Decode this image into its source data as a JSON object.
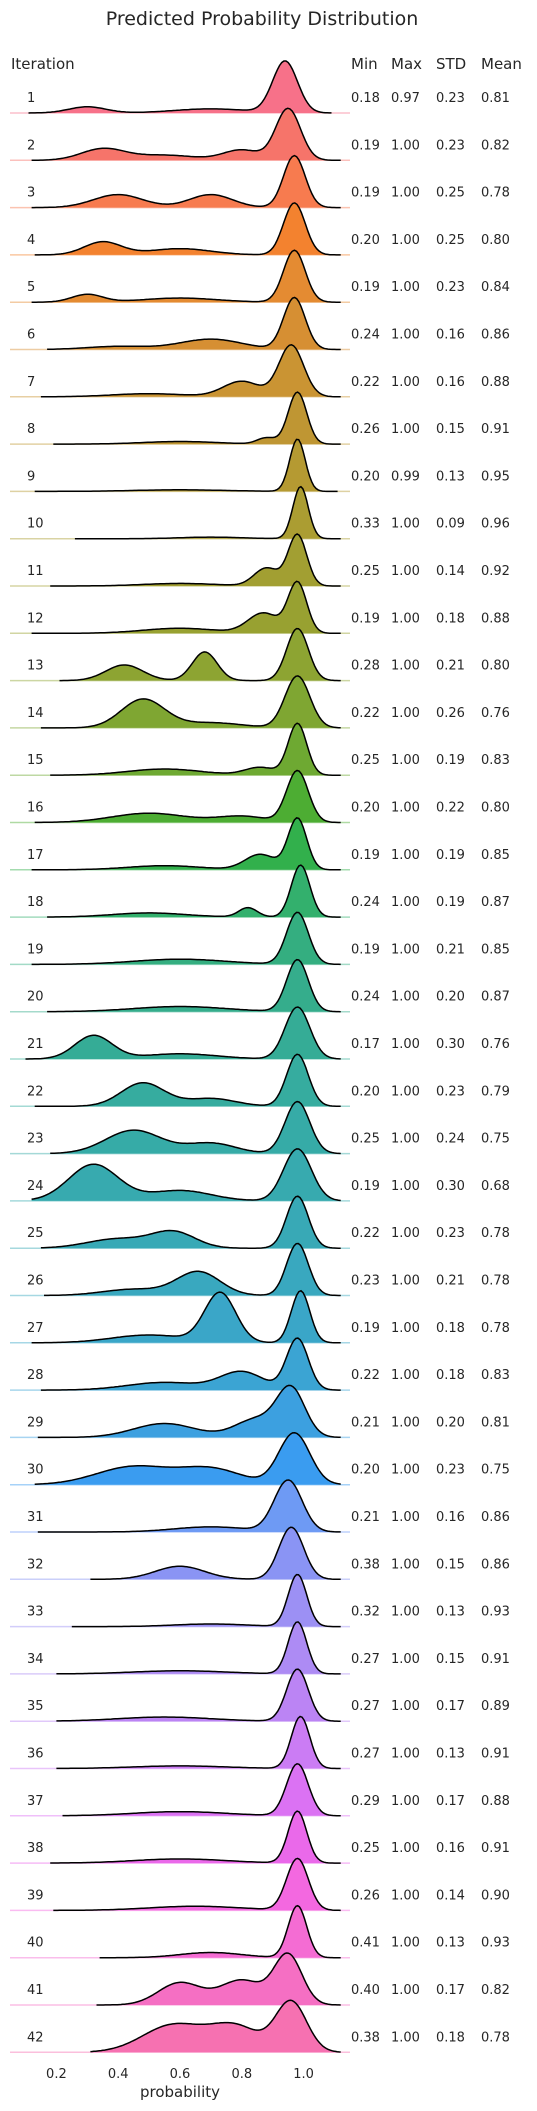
{
  "chart_data": {
    "type": "ridgeline",
    "title": "Predicted Probability Distribution",
    "xlabel": "probability",
    "xlim": [
      0.05,
      1.15
    ],
    "xticks": [
      "0.2",
      "0.4",
      "0.6",
      "0.8",
      "1.0"
    ],
    "headers": {
      "iteration": "Iteration",
      "min": "Min",
      "max": "Max",
      "std": "STD",
      "mean": "Mean"
    },
    "rows": [
      {
        "iteration": "1",
        "min": "0.18",
        "max": "0.97",
        "std": "0.23",
        "mean": "0.81",
        "color": "#f77189",
        "peaks": [
          [
            0.94,
            1.0,
            0.04
          ],
          [
            0.3,
            0.12,
            0.06
          ],
          [
            0.7,
            0.08,
            0.12
          ]
        ]
      },
      {
        "iteration": "2",
        "min": "0.19",
        "max": "1.00",
        "std": "0.23",
        "mean": "0.82",
        "color": "#f6746a",
        "peaks": [
          [
            0.95,
            1.0,
            0.04
          ],
          [
            0.35,
            0.22,
            0.07
          ],
          [
            0.8,
            0.2,
            0.06
          ],
          [
            0.55,
            0.1,
            0.1
          ]
        ]
      },
      {
        "iteration": "3",
        "min": "0.19",
        "max": "1.00",
        "std": "0.25",
        "mean": "0.78",
        "color": "#f77b4f",
        "peaks": [
          [
            0.97,
            1.0,
            0.035
          ],
          [
            0.4,
            0.25,
            0.08
          ],
          [
            0.7,
            0.25,
            0.07
          ]
        ]
      },
      {
        "iteration": "4",
        "min": "0.20",
        "max": "1.00",
        "std": "0.25",
        "mean": "0.80",
        "color": "#f3822f",
        "peaks": [
          [
            0.97,
            1.0,
            0.035
          ],
          [
            0.35,
            0.25,
            0.06
          ],
          [
            0.6,
            0.12,
            0.1
          ]
        ]
      },
      {
        "iteration": "5",
        "min": "0.19",
        "max": "1.00",
        "std": "0.23",
        "mean": "0.84",
        "color": "#e48b32",
        "peaks": [
          [
            0.97,
            1.0,
            0.035
          ],
          [
            0.3,
            0.15,
            0.05
          ],
          [
            0.6,
            0.08,
            0.12
          ]
        ]
      },
      {
        "iteration": "6",
        "min": "0.24",
        "max": "1.00",
        "std": "0.16",
        "mean": "0.86",
        "color": "#d68f33",
        "peaks": [
          [
            0.97,
            1.0,
            0.035
          ],
          [
            0.7,
            0.2,
            0.1
          ],
          [
            0.4,
            0.06,
            0.1
          ]
        ]
      },
      {
        "iteration": "7",
        "min": "0.22",
        "max": "1.00",
        "std": "0.16",
        "mean": "0.88",
        "color": "#ca9433",
        "peaks": [
          [
            0.96,
            1.0,
            0.04
          ],
          [
            0.8,
            0.3,
            0.06
          ],
          [
            0.5,
            0.06,
            0.12
          ]
        ]
      },
      {
        "iteration": "8",
        "min": "0.26",
        "max": "1.00",
        "std": "0.15",
        "mean": "0.91",
        "color": "#bf9633",
        "peaks": [
          [
            0.98,
            1.0,
            0.03
          ],
          [
            0.88,
            0.12,
            0.03
          ],
          [
            0.6,
            0.05,
            0.12
          ]
        ]
      },
      {
        "iteration": "9",
        "min": "0.20",
        "max": "0.99",
        "std": "0.13",
        "mean": "0.95",
        "color": "#b59a32",
        "peaks": [
          [
            0.98,
            1.0,
            0.025
          ],
          [
            0.6,
            0.03,
            0.15
          ]
        ]
      },
      {
        "iteration": "10",
        "min": "0.33",
        "max": "1.00",
        "std": "0.09",
        "mean": "0.96",
        "color": "#ab9d32",
        "peaks": [
          [
            0.99,
            1.0,
            0.025
          ],
          [
            0.7,
            0.03,
            0.1
          ]
        ]
      },
      {
        "iteration": "11",
        "min": "0.25",
        "max": "1.00",
        "std": "0.14",
        "mean": "0.92",
        "color": "#a29f32",
        "peaks": [
          [
            0.98,
            1.0,
            0.03
          ],
          [
            0.88,
            0.35,
            0.04
          ],
          [
            0.6,
            0.05,
            0.12
          ]
        ]
      },
      {
        "iteration": "12",
        "min": "0.19",
        "max": "1.00",
        "std": "0.18",
        "mean": "0.88",
        "color": "#98a131",
        "peaks": [
          [
            0.98,
            1.0,
            0.03
          ],
          [
            0.87,
            0.4,
            0.05
          ],
          [
            0.6,
            0.1,
            0.12
          ]
        ]
      },
      {
        "iteration": "13",
        "min": "0.28",
        "max": "1.00",
        "std": "0.21",
        "mean": "0.80",
        "color": "#8da432",
        "peaks": [
          [
            0.98,
            1.0,
            0.035
          ],
          [
            0.68,
            0.55,
            0.04
          ],
          [
            0.42,
            0.3,
            0.06
          ]
        ]
      },
      {
        "iteration": "14",
        "min": "0.22",
        "max": "1.00",
        "std": "0.26",
        "mean": "0.76",
        "color": "#7fa632",
        "peaks": [
          [
            0.98,
            1.0,
            0.04
          ],
          [
            0.48,
            0.55,
            0.07
          ],
          [
            0.7,
            0.1,
            0.1
          ]
        ]
      },
      {
        "iteration": "15",
        "min": "0.25",
        "max": "1.00",
        "std": "0.19",
        "mean": "0.83",
        "color": "#6ea932",
        "peaks": [
          [
            0.98,
            1.0,
            0.03
          ],
          [
            0.86,
            0.15,
            0.05
          ],
          [
            0.55,
            0.12,
            0.12
          ]
        ]
      },
      {
        "iteration": "16",
        "min": "0.20",
        "max": "1.00",
        "std": "0.22",
        "mean": "0.80",
        "color": "#4dad33",
        "peaks": [
          [
            0.98,
            1.0,
            0.035
          ],
          [
            0.5,
            0.18,
            0.12
          ],
          [
            0.8,
            0.12,
            0.08
          ]
        ]
      },
      {
        "iteration": "17",
        "min": "0.19",
        "max": "1.00",
        "std": "0.19",
        "mean": "0.85",
        "color": "#32b04c",
        "peaks": [
          [
            0.98,
            1.0,
            0.03
          ],
          [
            0.86,
            0.3,
            0.05
          ],
          [
            0.55,
            0.08,
            0.12
          ]
        ]
      },
      {
        "iteration": "18",
        "min": "0.24",
        "max": "1.00",
        "std": "0.19",
        "mean": "0.87",
        "color": "#33b06d",
        "peaks": [
          [
            0.99,
            1.0,
            0.03
          ],
          [
            0.82,
            0.18,
            0.03
          ],
          [
            0.5,
            0.08,
            0.12
          ]
        ]
      },
      {
        "iteration": "19",
        "min": "0.19",
        "max": "1.00",
        "std": "0.21",
        "mean": "0.85",
        "color": "#34ae80",
        "peaks": [
          [
            0.98,
            1.0,
            0.035
          ],
          [
            0.6,
            0.1,
            0.15
          ]
        ]
      },
      {
        "iteration": "20",
        "min": "0.24",
        "max": "1.00",
        "std": "0.20",
        "mean": "0.87",
        "color": "#35ad8c",
        "peaks": [
          [
            0.98,
            1.0,
            0.035
          ],
          [
            0.6,
            0.1,
            0.15
          ]
        ]
      },
      {
        "iteration": "21",
        "min": "0.17",
        "max": "1.00",
        "std": "0.30",
        "mean": "0.76",
        "color": "#35ac96",
        "peaks": [
          [
            0.98,
            1.0,
            0.04
          ],
          [
            0.32,
            0.45,
            0.06
          ],
          [
            0.6,
            0.1,
            0.12
          ]
        ]
      },
      {
        "iteration": "22",
        "min": "0.20",
        "max": "1.00",
        "std": "0.23",
        "mean": "0.79",
        "color": "#36ac9f",
        "peaks": [
          [
            0.98,
            1.0,
            0.035
          ],
          [
            0.48,
            0.45,
            0.07
          ],
          [
            0.7,
            0.15,
            0.08
          ]
        ]
      },
      {
        "iteration": "23",
        "min": "0.25",
        "max": "1.00",
        "std": "0.24",
        "mean": "0.75",
        "color": "#36aba7",
        "peaks": [
          [
            0.98,
            1.0,
            0.04
          ],
          [
            0.45,
            0.45,
            0.09
          ],
          [
            0.7,
            0.2,
            0.08
          ]
        ]
      },
      {
        "iteration": "24",
        "min": "0.19",
        "max": "1.00",
        "std": "0.30",
        "mean": "0.68",
        "color": "#37aaaf",
        "peaks": [
          [
            0.98,
            1.0,
            0.045
          ],
          [
            0.32,
            0.7,
            0.08
          ],
          [
            0.6,
            0.2,
            0.1
          ]
        ]
      },
      {
        "iteration": "25",
        "min": "0.22",
        "max": "1.00",
        "std": "0.23",
        "mean": "0.78",
        "color": "#38a9b6",
        "peaks": [
          [
            0.98,
            1.0,
            0.035
          ],
          [
            0.58,
            0.3,
            0.07
          ],
          [
            0.4,
            0.18,
            0.1
          ]
        ]
      },
      {
        "iteration": "26",
        "min": "0.23",
        "max": "1.00",
        "std": "0.21",
        "mean": "0.78",
        "color": "#39a8bf",
        "peaks": [
          [
            0.98,
            1.0,
            0.035
          ],
          [
            0.66,
            0.45,
            0.07
          ],
          [
            0.45,
            0.12,
            0.1
          ]
        ]
      },
      {
        "iteration": "27",
        "min": "0.19",
        "max": "1.00",
        "std": "0.18",
        "mean": "0.78",
        "color": "#3aa6c8",
        "peaks": [
          [
            0.99,
            1.0,
            0.03
          ],
          [
            0.73,
            0.95,
            0.05
          ],
          [
            0.5,
            0.15,
            0.12
          ]
        ]
      },
      {
        "iteration": "28",
        "min": "0.22",
        "max": "1.00",
        "std": "0.18",
        "mean": "0.83",
        "color": "#3ba4d3",
        "peaks": [
          [
            0.98,
            1.0,
            0.035
          ],
          [
            0.8,
            0.35,
            0.07
          ],
          [
            0.55,
            0.15,
            0.12
          ]
        ]
      },
      {
        "iteration": "29",
        "min": "0.21",
        "max": "1.00",
        "std": "0.20",
        "mean": "0.81",
        "color": "#3ca0e0",
        "peaks": [
          [
            0.96,
            1.0,
            0.045
          ],
          [
            0.55,
            0.3,
            0.1
          ],
          [
            0.85,
            0.4,
            0.07
          ]
        ]
      },
      {
        "iteration": "30",
        "min": "0.20",
        "max": "1.00",
        "std": "0.23",
        "mean": "0.75",
        "color": "#3a9cf0",
        "peaks": [
          [
            0.97,
            1.0,
            0.05
          ],
          [
            0.45,
            0.35,
            0.12
          ],
          [
            0.7,
            0.3,
            0.1
          ]
        ]
      },
      {
        "iteration": "31",
        "min": "0.21",
        "max": "1.00",
        "std": "0.16",
        "mean": "0.86",
        "color": "#6e9af4",
        "peaks": [
          [
            0.95,
            1.0,
            0.045
          ],
          [
            0.7,
            0.1,
            0.12
          ]
        ]
      },
      {
        "iteration": "32",
        "min": "0.38",
        "max": "1.00",
        "std": "0.15",
        "mean": "0.86",
        "color": "#8a94f4",
        "peaks": [
          [
            0.96,
            1.0,
            0.04
          ],
          [
            0.6,
            0.25,
            0.08
          ]
        ]
      },
      {
        "iteration": "33",
        "min": "0.32",
        "max": "1.00",
        "std": "0.13",
        "mean": "0.93",
        "color": "#9c90f4",
        "peaks": [
          [
            0.98,
            1.0,
            0.03
          ],
          [
            0.7,
            0.05,
            0.12
          ]
        ]
      },
      {
        "iteration": "34",
        "min": "0.27",
        "max": "1.00",
        "std": "0.15",
        "mean": "0.91",
        "color": "#ad8bf4",
        "peaks": [
          [
            0.98,
            1.0,
            0.03
          ],
          [
            0.6,
            0.06,
            0.15
          ]
        ]
      },
      {
        "iteration": "35",
        "min": "0.27",
        "max": "1.00",
        "std": "0.17",
        "mean": "0.89",
        "color": "#bb84f4",
        "peaks": [
          [
            0.98,
            1.0,
            0.035
          ],
          [
            0.55,
            0.08,
            0.15
          ]
        ]
      },
      {
        "iteration": "36",
        "min": "0.27",
        "max": "1.00",
        "std": "0.13",
        "mean": "0.91",
        "color": "#cb7cf4",
        "peaks": [
          [
            0.99,
            1.0,
            0.03
          ],
          [
            0.6,
            0.05,
            0.15
          ]
        ]
      },
      {
        "iteration": "37",
        "min": "0.29",
        "max": "1.00",
        "std": "0.17",
        "mean": "0.88",
        "color": "#db72f3",
        "peaks": [
          [
            0.98,
            1.0,
            0.035
          ],
          [
            0.6,
            0.08,
            0.15
          ]
        ]
      },
      {
        "iteration": "38",
        "min": "0.25",
        "max": "1.00",
        "std": "0.16",
        "mean": "0.91",
        "color": "#ea69ea",
        "peaks": [
          [
            0.98,
            1.0,
            0.03
          ],
          [
            0.6,
            0.08,
            0.15
          ]
        ]
      },
      {
        "iteration": "39",
        "min": "0.26",
        "max": "1.00",
        "std": "0.14",
        "mean": "0.90",
        "color": "#f368e0",
        "peaks": [
          [
            0.98,
            1.0,
            0.035
          ],
          [
            0.65,
            0.08,
            0.15
          ]
        ]
      },
      {
        "iteration": "40",
        "min": "0.41",
        "max": "1.00",
        "std": "0.13",
        "mean": "0.93",
        "color": "#f46cd3",
        "peaks": [
          [
            0.98,
            1.0,
            0.03
          ],
          [
            0.7,
            0.1,
            0.1
          ]
        ]
      },
      {
        "iteration": "41",
        "min": "0.40",
        "max": "1.00",
        "std": "0.17",
        "mean": "0.82",
        "color": "#f56fc3",
        "peaks": [
          [
            0.95,
            1.0,
            0.045
          ],
          [
            0.6,
            0.45,
            0.07
          ],
          [
            0.8,
            0.5,
            0.07
          ]
        ]
      },
      {
        "iteration": "42",
        "min": "0.38",
        "max": "1.00",
        "std": "0.18",
        "mean": "0.78",
        "color": "#f671b1",
        "peaks": [
          [
            0.96,
            1.0,
            0.05
          ],
          [
            0.58,
            0.55,
            0.1
          ],
          [
            0.78,
            0.5,
            0.08
          ]
        ]
      }
    ]
  }
}
